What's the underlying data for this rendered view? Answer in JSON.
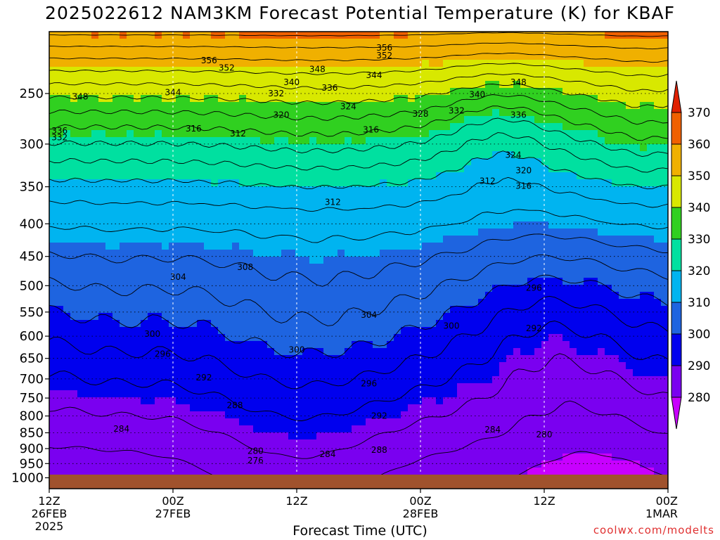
{
  "chart_data": {
    "type": "heatmap",
    "title": "2025022612 NAM3KM Forecast Potential Temperature (K) for KBAF",
    "xlabel": "Forecast Time (UTC)",
    "ylabel": "",
    "y_scale": "log-pressure",
    "ylim": [
      1040,
      200
    ],
    "y_ticks": [
      250,
      300,
      350,
      400,
      450,
      500,
      550,
      600,
      650,
      700,
      750,
      800,
      850,
      900,
      950,
      1000
    ],
    "x_ticks": [
      {
        "label": "12Z",
        "sub": "26FEB",
        "sub2": "2025",
        "hour": 0
      },
      {
        "label": "00Z",
        "sub": "27FEB",
        "sub2": "",
        "hour": 12
      },
      {
        "label": "12Z",
        "sub": "",
        "sub2": "",
        "hour": 24
      },
      {
        "label": "00Z",
        "sub": "28FEB",
        "sub2": "",
        "hour": 36
      },
      {
        "label": "12Z",
        "sub": "",
        "sub2": "",
        "hour": 48
      },
      {
        "label": "00Z",
        "sub": "1MAR",
        "sub2": "",
        "hour": 60
      }
    ],
    "xlim": [
      0,
      60
    ],
    "grid": true,
    "colorbar": {
      "levels": [
        280,
        290,
        300,
        310,
        320,
        330,
        340,
        350,
        360,
        370
      ],
      "colors": [
        "#a000ee",
        "#7a00f0",
        "#0000ee",
        "#1e64e0",
        "#00b4f0",
        "#00e0a0",
        "#30d020",
        "#d8e800",
        "#f0b000",
        "#f06000",
        "#e02000"
      ],
      "extend_low_color": "#c800ff",
      "extend_high_color": "#e02000"
    },
    "contour_labels": [
      {
        "value": "356",
        "hour": 32.5,
        "p": 212
      },
      {
        "value": "352",
        "hour": 32.5,
        "p": 218
      },
      {
        "value": "356",
        "hour": 15.5,
        "p": 222
      },
      {
        "value": "352",
        "hour": 17.2,
        "p": 228
      },
      {
        "value": "348",
        "hour": 26.0,
        "p": 229
      },
      {
        "value": "344",
        "hour": 31.5,
        "p": 234
      },
      {
        "value": "340",
        "hour": 23.5,
        "p": 240
      },
      {
        "value": "336",
        "hour": 27.2,
        "p": 245
      },
      {
        "value": "348",
        "hour": 45.5,
        "p": 240
      },
      {
        "value": "332",
        "hour": 22.0,
        "p": 250
      },
      {
        "value": "344",
        "hour": 12.0,
        "p": 249
      },
      {
        "value": "340",
        "hour": 41.5,
        "p": 251
      },
      {
        "value": "348",
        "hour": 3.0,
        "p": 253
      },
      {
        "value": "324",
        "hour": 29.0,
        "p": 262
      },
      {
        "value": "328",
        "hour": 36.0,
        "p": 269
      },
      {
        "value": "332",
        "hour": 39.5,
        "p": 266
      },
      {
        "value": "336",
        "hour": 45.5,
        "p": 270
      },
      {
        "value": "320",
        "hour": 22.5,
        "p": 270
      },
      {
        "value": "316",
        "hour": 14.0,
        "p": 284
      },
      {
        "value": "312",
        "hour": 18.3,
        "p": 289
      },
      {
        "value": "316",
        "hour": 31.2,
        "p": 285
      },
      {
        "value": "336",
        "hour": 1.0,
        "p": 286
      },
      {
        "value": "332",
        "hour": 1.0,
        "p": 293
      },
      {
        "value": "324",
        "hour": 45.0,
        "p": 312
      },
      {
        "value": "320",
        "hour": 46.0,
        "p": 330
      },
      {
        "value": "316",
        "hour": 46.0,
        "p": 349
      },
      {
        "value": "312",
        "hour": 42.5,
        "p": 343
      },
      {
        "value": "312",
        "hour": 27.5,
        "p": 370
      },
      {
        "value": "308",
        "hour": 19.0,
        "p": 468
      },
      {
        "value": "304",
        "hour": 12.5,
        "p": 485
      },
      {
        "value": "296",
        "hour": 47.0,
        "p": 504
      },
      {
        "value": "304",
        "hour": 31.0,
        "p": 556
      },
      {
        "value": "300",
        "hour": 39.0,
        "p": 578
      },
      {
        "value": "292",
        "hour": 47.0,
        "p": 583
      },
      {
        "value": "300",
        "hour": 10.0,
        "p": 595
      },
      {
        "value": "300",
        "hour": 24.0,
        "p": 630
      },
      {
        "value": "296",
        "hour": 11.0,
        "p": 640
      },
      {
        "value": "292",
        "hour": 15.0,
        "p": 697
      },
      {
        "value": "296",
        "hour": 31.0,
        "p": 712
      },
      {
        "value": "288",
        "hour": 18.0,
        "p": 770
      },
      {
        "value": "292",
        "hour": 32.0,
        "p": 800
      },
      {
        "value": "284",
        "hour": 7.0,
        "p": 838
      },
      {
        "value": "284",
        "hour": 43.0,
        "p": 840
      },
      {
        "value": "280",
        "hour": 48.0,
        "p": 855
      },
      {
        "value": "280",
        "hour": 20.0,
        "p": 908
      },
      {
        "value": "284",
        "hour": 27.0,
        "p": 919
      },
      {
        "value": "288",
        "hour": 32.0,
        "p": 905
      },
      {
        "value": "276",
        "hour": 20.0,
        "p": 940
      }
    ]
  },
  "credit": "coolwx.com/modelts"
}
